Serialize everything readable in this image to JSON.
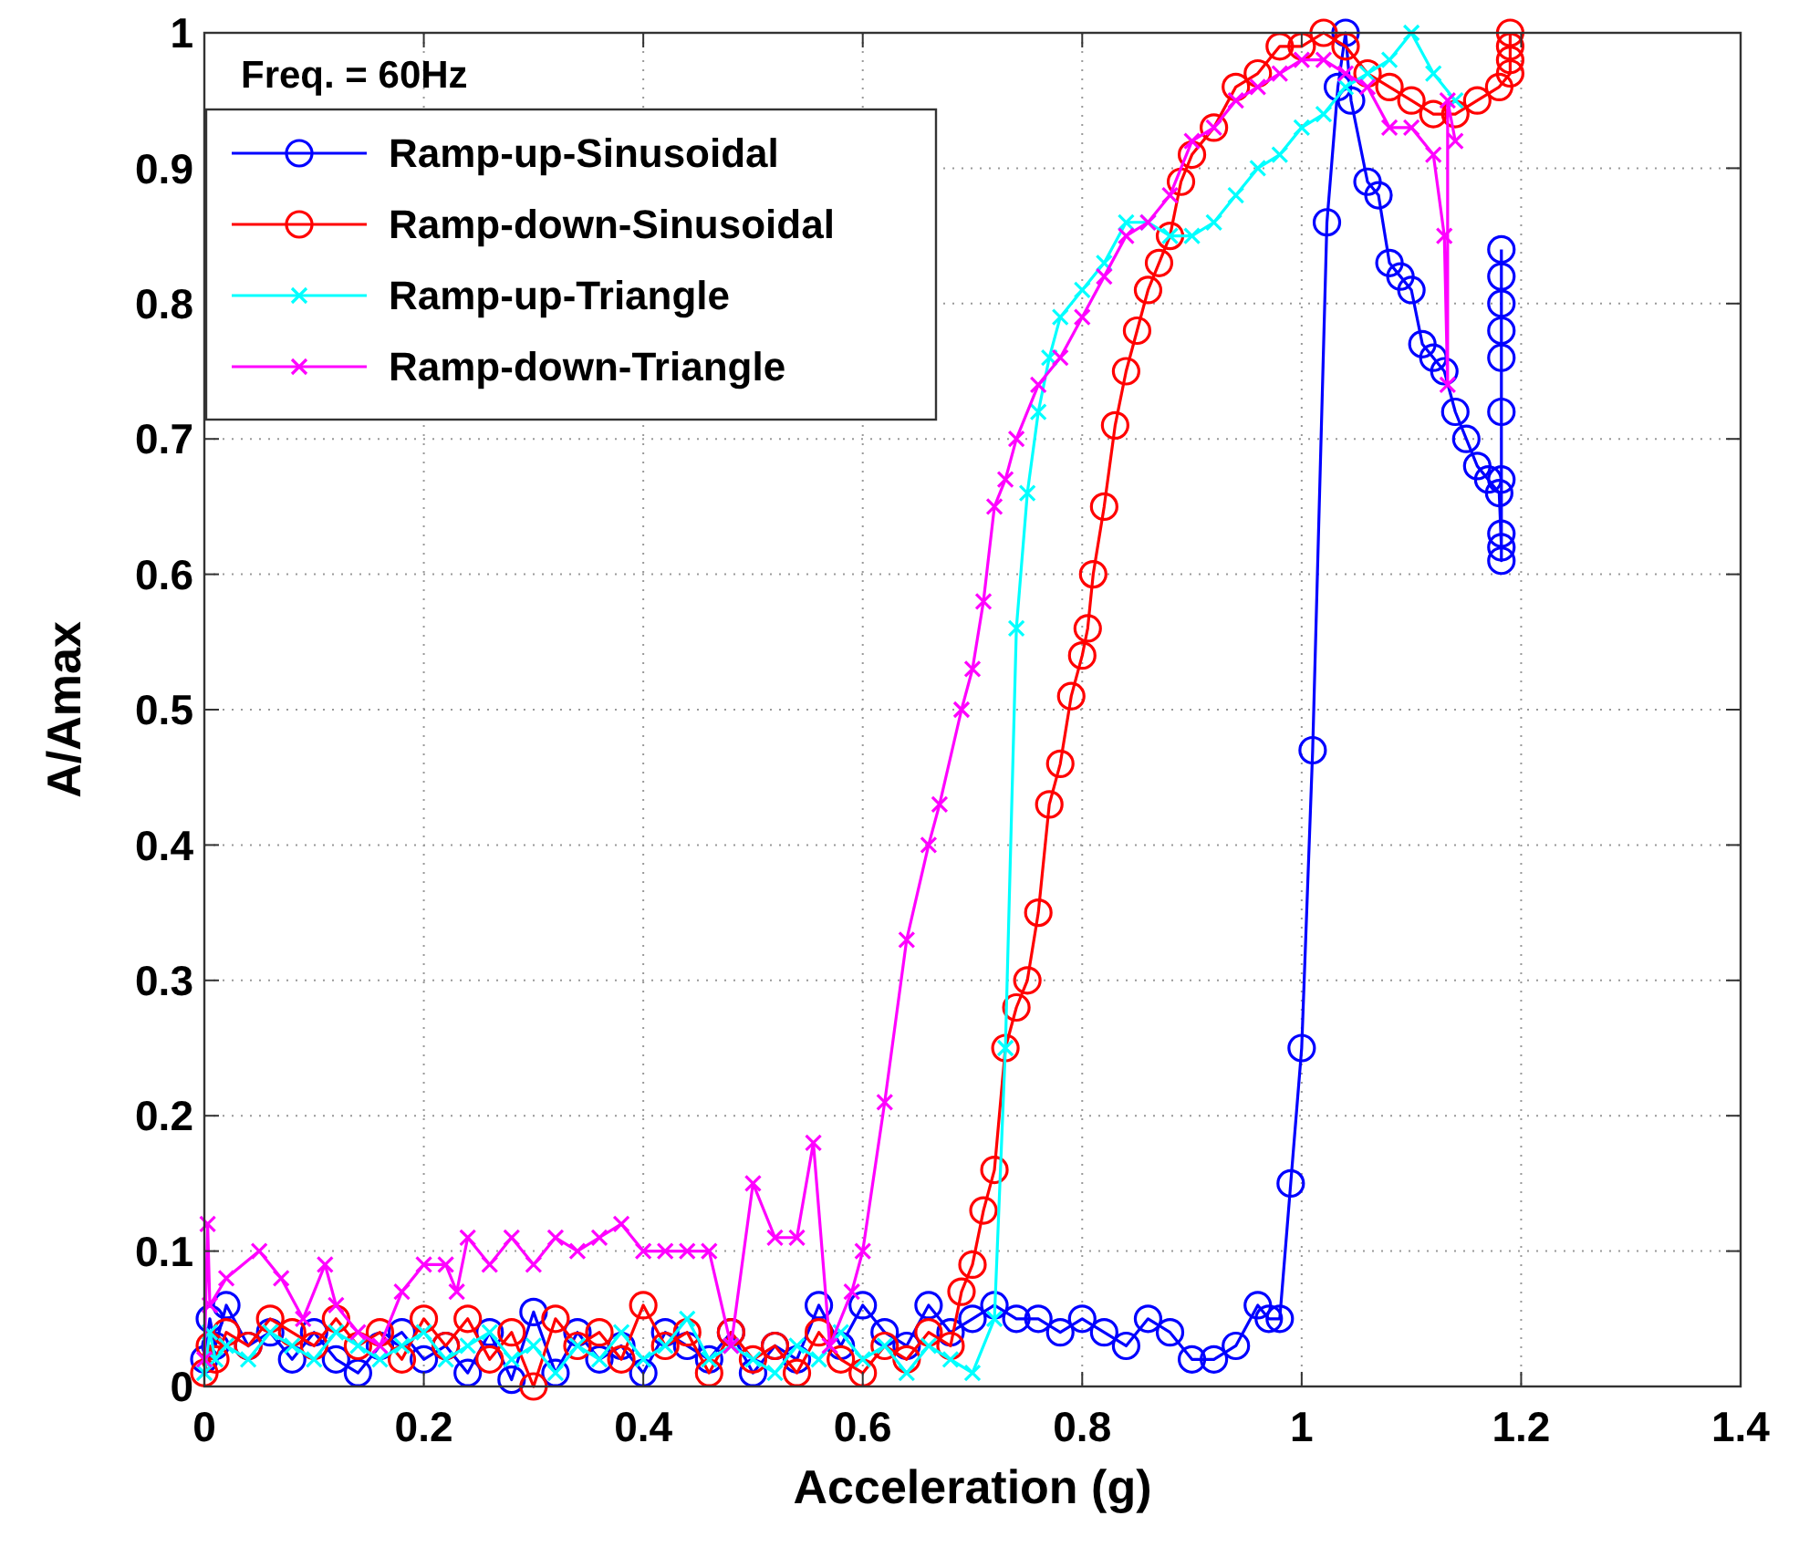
{
  "chart_data": {
    "type": "line",
    "xlabel": "Acceleration (g)",
    "ylabel": "A/Amax",
    "annotations": [
      "Freq. = 60Hz"
    ],
    "xlim": [
      0,
      1.4
    ],
    "ylim": [
      0,
      1
    ],
    "xticks": [
      0,
      0.2,
      0.4,
      0.6,
      0.8,
      1,
      1.2,
      1.4
    ],
    "yticks": [
      0,
      0.1,
      0.2,
      0.3,
      0.4,
      0.5,
      0.6,
      0.7,
      0.8,
      0.9,
      1
    ],
    "grid": true,
    "legend": "top left",
    "line_style": "solid",
    "series": [
      {
        "name": "Ramp-up-Sinusoidal",
        "color": "#0000ff",
        "marker": "circle",
        "x": [
          0,
          0.005,
          0.01,
          0.02,
          0.04,
          0.06,
          0.08,
          0.1,
          0.12,
          0.14,
          0.16,
          0.18,
          0.2,
          0.22,
          0.24,
          0.26,
          0.28,
          0.3,
          0.32,
          0.34,
          0.36,
          0.38,
          0.4,
          0.42,
          0.44,
          0.46,
          0.48,
          0.5,
          0.52,
          0.54,
          0.56,
          0.58,
          0.6,
          0.62,
          0.64,
          0.66,
          0.68,
          0.7,
          0.72,
          0.74,
          0.76,
          0.78,
          0.8,
          0.82,
          0.84,
          0.86,
          0.88,
          0.9,
          0.92,
          0.94,
          0.96,
          0.97,
          0.98,
          0.99,
          1,
          1.01,
          1.023,
          1.033,
          1.04,
          1.045,
          1.06,
          1.07,
          1.08,
          1.09,
          1.1,
          1.11,
          1.12,
          1.13,
          1.14,
          1.15,
          1.16,
          1.17,
          1.18,
          1.182,
          1.182,
          1.182,
          1.182,
          1.182,
          1.182,
          1.182,
          1.182,
          1.182,
          1.182
        ],
        "values": [
          0.02,
          0.05,
          0.03,
          0.06,
          0.03,
          0.04,
          0.02,
          0.04,
          0.02,
          0.01,
          0.03,
          0.04,
          0.02,
          0.03,
          0.01,
          0.04,
          0.005,
          0.055,
          0.01,
          0.04,
          0.02,
          0.03,
          0.01,
          0.04,
          0.03,
          0.02,
          0.04,
          0.01,
          0.03,
          0.02,
          0.06,
          0.03,
          0.06,
          0.04,
          0.03,
          0.06,
          0.04,
          0.05,
          0.06,
          0.05,
          0.05,
          0.04,
          0.05,
          0.04,
          0.03,
          0.05,
          0.04,
          0.02,
          0.02,
          0.03,
          0.06,
          0.05,
          0.05,
          0.15,
          0.25,
          0.47,
          0.86,
          0.96,
          1,
          0.95,
          0.89,
          0.88,
          0.83,
          0.82,
          0.81,
          0.77,
          0.76,
          0.75,
          0.72,
          0.7,
          0.68,
          0.67,
          0.66,
          0.62,
          0.61,
          0.63,
          0.67,
          0.72,
          0.76,
          0.78,
          0.8,
          0.82,
          0.84
        ]
      },
      {
        "name": "Ramp-down-Sinusoidal",
        "color": "#ff0000",
        "marker": "circle",
        "x": [
          0,
          0.005,
          0.01,
          0.02,
          0.04,
          0.06,
          0.08,
          0.1,
          0.12,
          0.14,
          0.16,
          0.18,
          0.2,
          0.22,
          0.24,
          0.26,
          0.28,
          0.3,
          0.32,
          0.34,
          0.36,
          0.38,
          0.4,
          0.42,
          0.44,
          0.46,
          0.48,
          0.5,
          0.52,
          0.54,
          0.56,
          0.58,
          0.6,
          0.62,
          0.64,
          0.66,
          0.68,
          0.69,
          0.7,
          0.71,
          0.72,
          0.73,
          0.74,
          0.75,
          0.76,
          0.77,
          0.78,
          0.79,
          0.8,
          0.805,
          0.81,
          0.82,
          0.83,
          0.84,
          0.85,
          0.86,
          0.87,
          0.88,
          0.89,
          0.9,
          0.92,
          0.94,
          0.96,
          0.98,
          1,
          1.02,
          1.04,
          1.06,
          1.08,
          1.1,
          1.12,
          1.14,
          1.16,
          1.18,
          1.19,
          1.19,
          1.19,
          1.19
        ],
        "values": [
          0.01,
          0.03,
          0.02,
          0.04,
          0.03,
          0.05,
          0.04,
          0.03,
          0.05,
          0.03,
          0.04,
          0.02,
          0.05,
          0.03,
          0.05,
          0.02,
          0.04,
          0,
          0.05,
          0.03,
          0.04,
          0.02,
          0.06,
          0.03,
          0.04,
          0.01,
          0.04,
          0.02,
          0.03,
          0.01,
          0.04,
          0.02,
          0.01,
          0.03,
          0.02,
          0.04,
          0.03,
          0.07,
          0.09,
          0.13,
          0.16,
          0.25,
          0.28,
          0.3,
          0.35,
          0.43,
          0.46,
          0.51,
          0.54,
          0.56,
          0.6,
          0.65,
          0.71,
          0.75,
          0.78,
          0.81,
          0.83,
          0.85,
          0.89,
          0.91,
          0.93,
          0.96,
          0.97,
          0.99,
          0.99,
          1,
          0.99,
          0.97,
          0.96,
          0.95,
          0.94,
          0.94,
          0.95,
          0.96,
          0.97,
          0.98,
          0.99,
          1
        ]
      },
      {
        "name": "Ramp-up-Triangle",
        "color": "#00ffff",
        "marker": "cross",
        "x": [
          0,
          0.005,
          0.01,
          0.02,
          0.04,
          0.06,
          0.08,
          0.1,
          0.12,
          0.14,
          0.16,
          0.18,
          0.2,
          0.22,
          0.24,
          0.26,
          0.28,
          0.3,
          0.32,
          0.34,
          0.36,
          0.38,
          0.4,
          0.42,
          0.44,
          0.46,
          0.48,
          0.5,
          0.52,
          0.54,
          0.56,
          0.58,
          0.6,
          0.62,
          0.64,
          0.66,
          0.68,
          0.7,
          0.72,
          0.73,
          0.74,
          0.75,
          0.76,
          0.77,
          0.78,
          0.8,
          0.82,
          0.84,
          0.86,
          0.88,
          0.9,
          0.92,
          0.94,
          0.96,
          0.98,
          1,
          1.02,
          1.04,
          1.06,
          1.08,
          1.1,
          1.12,
          1.14
        ],
        "values": [
          0.01,
          0.04,
          0.02,
          0.03,
          0.02,
          0.04,
          0.03,
          0.02,
          0.04,
          0.03,
          0.02,
          0.03,
          0.04,
          0.02,
          0.03,
          0.04,
          0.02,
          0.03,
          0.01,
          0.03,
          0.02,
          0.04,
          0.02,
          0.03,
          0.05,
          0.02,
          0.03,
          0.02,
          0.01,
          0.03,
          0.02,
          0.04,
          0.02,
          0.03,
          0.01,
          0.03,
          0.02,
          0.01,
          0.05,
          0.25,
          0.56,
          0.66,
          0.72,
          0.76,
          0.79,
          0.81,
          0.83,
          0.86,
          0.86,
          0.85,
          0.85,
          0.86,
          0.88,
          0.9,
          0.91,
          0.93,
          0.94,
          0.96,
          0.97,
          0.98,
          1,
          0.97,
          0.95
        ]
      },
      {
        "name": "Ramp-down-Triangle",
        "color": "#ff00ff",
        "marker": "cross",
        "x": [
          0,
          0.003,
          0.005,
          0.02,
          0.05,
          0.07,
          0.09,
          0.11,
          0.12,
          0.14,
          0.16,
          0.18,
          0.2,
          0.22,
          0.23,
          0.24,
          0.26,
          0.28,
          0.3,
          0.32,
          0.34,
          0.36,
          0.38,
          0.4,
          0.42,
          0.44,
          0.46,
          0.48,
          0.5,
          0.52,
          0.54,
          0.555,
          0.57,
          0.59,
          0.6,
          0.62,
          0.64,
          0.66,
          0.67,
          0.69,
          0.7,
          0.71,
          0.72,
          0.73,
          0.74,
          0.76,
          0.78,
          0.8,
          0.82,
          0.84,
          0.86,
          0.88,
          0.9,
          0.92,
          0.94,
          0.96,
          0.98,
          1,
          1.02,
          1.04,
          1.06,
          1.08,
          1.1,
          1.12,
          1.13,
          1.133,
          1.133,
          1.14
        ],
        "values": [
          0.02,
          0.12,
          0.06,
          0.08,
          0.1,
          0.08,
          0.05,
          0.09,
          0.06,
          0.04,
          0.03,
          0.07,
          0.09,
          0.09,
          0.07,
          0.11,
          0.09,
          0.11,
          0.09,
          0.11,
          0.1,
          0.11,
          0.12,
          0.1,
          0.1,
          0.1,
          0.1,
          0.03,
          0.15,
          0.11,
          0.11,
          0.18,
          0.03,
          0.07,
          0.1,
          0.21,
          0.33,
          0.4,
          0.43,
          0.5,
          0.53,
          0.58,
          0.65,
          0.67,
          0.7,
          0.74,
          0.76,
          0.79,
          0.82,
          0.85,
          0.86,
          0.88,
          0.92,
          0.93,
          0.95,
          0.96,
          0.97,
          0.98,
          0.98,
          0.97,
          0.96,
          0.93,
          0.93,
          0.91,
          0.85,
          0.74,
          0.95,
          0.92
        ]
      }
    ]
  }
}
